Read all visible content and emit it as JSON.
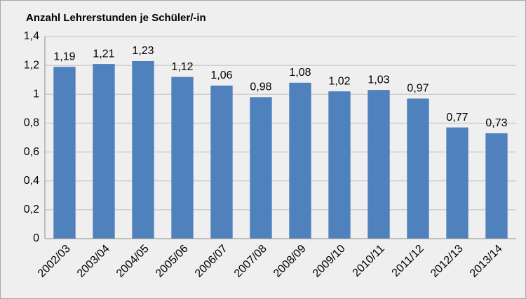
{
  "chart_data": {
    "type": "bar",
    "title": "Anzahl Lehrerstunden je Schüler/-in",
    "categories": [
      "2002/03",
      "2003/04",
      "2004/05",
      "2005/06",
      "2006/07",
      "2007/08",
      "2008/09",
      "2009/10",
      "2010/11",
      "2011/12",
      "2012/13",
      "2013/14"
    ],
    "values": [
      1.19,
      1.21,
      1.23,
      1.12,
      1.06,
      0.98,
      1.08,
      1.02,
      1.03,
      0.97,
      0.77,
      0.73
    ],
    "value_labels": [
      "1,19",
      "1,21",
      "1,23",
      "1,12",
      "1,06",
      "0,98",
      "1,08",
      "1,02",
      "1,03",
      "0,97",
      "0,77",
      "0,73"
    ],
    "color": "#4f81bd",
    "ylim": [
      0,
      1.4
    ],
    "yticks": [
      0,
      {
        "value": 0.2,
        "label": "0,2"
      },
      {
        "value": 0.4,
        "label": "0,4"
      },
      {
        "value": 0.6,
        "label": "0,6"
      },
      {
        "value": 0.8,
        "label": "0,8"
      },
      1,
      {
        "value": 1.2,
        "label": "1,2"
      },
      {
        "value": 1.4,
        "label": "1,4"
      }
    ],
    "grid": true
  }
}
